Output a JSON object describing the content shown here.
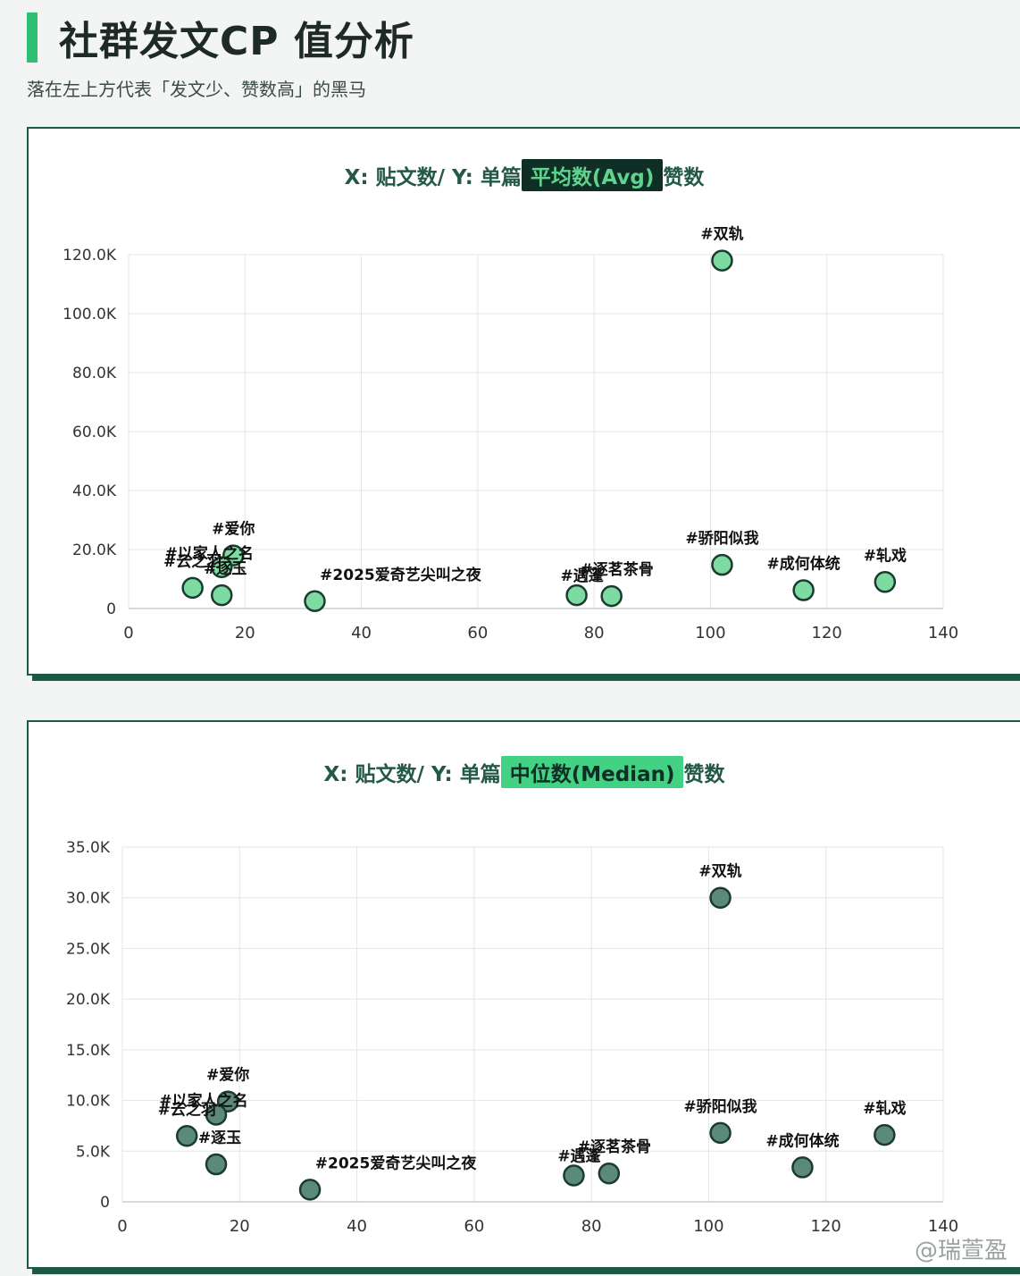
{
  "page": {
    "title": "社群发文CP 值分析",
    "subtitle": "落在左上方代表「发文少、赞数高」的黑马",
    "watermark": "@瑞萱盈"
  },
  "colors": {
    "accent": "#2fbf71",
    "frame": "#1b5a46",
    "point_avg": "#7ddba1",
    "point_median": "#5c8a78",
    "point_stroke": "#1b3b30"
  },
  "chart_data": [
    {
      "type": "scatter",
      "title_prefix": "X: 贴文数/ Y: 单篇",
      "title_highlight": "平均数(Avg)",
      "title_suffix": "赞数",
      "xlim": [
        0,
        140
      ],
      "ylim": [
        0,
        120000
      ],
      "x_ticks": [
        0,
        20,
        40,
        60,
        80,
        100,
        120,
        140
      ],
      "y_ticks": [
        0,
        20000,
        40000,
        60000,
        80000,
        100000,
        120000
      ],
      "y_tick_labels": [
        "0",
        "20.0K",
        "40.0K",
        "60.0K",
        "80.0K",
        "100.0K",
        "120.0K"
      ],
      "grid": true,
      "points": [
        {
          "label": "#双轨",
          "x": 102,
          "y": 118000
        },
        {
          "label": "#骄阳似我",
          "x": 102,
          "y": 14800
        },
        {
          "label": "#成何体统",
          "x": 116,
          "y": 6200
        },
        {
          "label": "#轧戏",
          "x": 130,
          "y": 9000
        },
        {
          "label": "#遇蓬",
          "x": 77,
          "y": 4500
        },
        {
          "label": "#逐茗茶骨",
          "x": 83,
          "y": 4200
        },
        {
          "label": "#爱你",
          "x": 18,
          "y": 18000
        },
        {
          "label": "#以家人之名",
          "x": 16,
          "y": 14000
        },
        {
          "label": "#云之羽",
          "x": 11,
          "y": 7000
        },
        {
          "label": "#逐玉",
          "x": 16,
          "y": 4500
        },
        {
          "label": "#2025爱奇艺尖叫之夜",
          "x": 32,
          "y": 2500
        }
      ]
    },
    {
      "type": "scatter",
      "title_prefix": "X: 贴文数/ Y: 单篇",
      "title_highlight": "中位数(Median)",
      "title_suffix": "赞数",
      "xlim": [
        0,
        140
      ],
      "ylim": [
        0,
        35000
      ],
      "x_ticks": [
        0,
        20,
        40,
        60,
        80,
        100,
        120,
        140
      ],
      "y_ticks": [
        0,
        5000,
        10000,
        15000,
        20000,
        25000,
        30000,
        35000
      ],
      "y_tick_labels": [
        "0",
        "5.0K",
        "10.0K",
        "15.0K",
        "20.0K",
        "25.0K",
        "30.0K",
        "35.0K"
      ],
      "grid": true,
      "points": [
        {
          "label": "#双轨",
          "x": 102,
          "y": 30000
        },
        {
          "label": "#骄阳似我",
          "x": 102,
          "y": 6800
        },
        {
          "label": "#成何体统",
          "x": 116,
          "y": 3400
        },
        {
          "label": "#轧戏",
          "x": 130,
          "y": 6600
        },
        {
          "label": "#遇蓬",
          "x": 77,
          "y": 2600
        },
        {
          "label": "#逐茗茶骨",
          "x": 83,
          "y": 2800
        },
        {
          "label": "#爱你",
          "x": 18,
          "y": 9900
        },
        {
          "label": "#以家人之名",
          "x": 16,
          "y": 8600
        },
        {
          "label": "#云之羽",
          "x": 11,
          "y": 6500
        },
        {
          "label": "#逐玉",
          "x": 16,
          "y": 3700
        },
        {
          "label": "#2025爱奇艺尖叫之夜",
          "x": 32,
          "y": 1200
        }
      ]
    }
  ]
}
